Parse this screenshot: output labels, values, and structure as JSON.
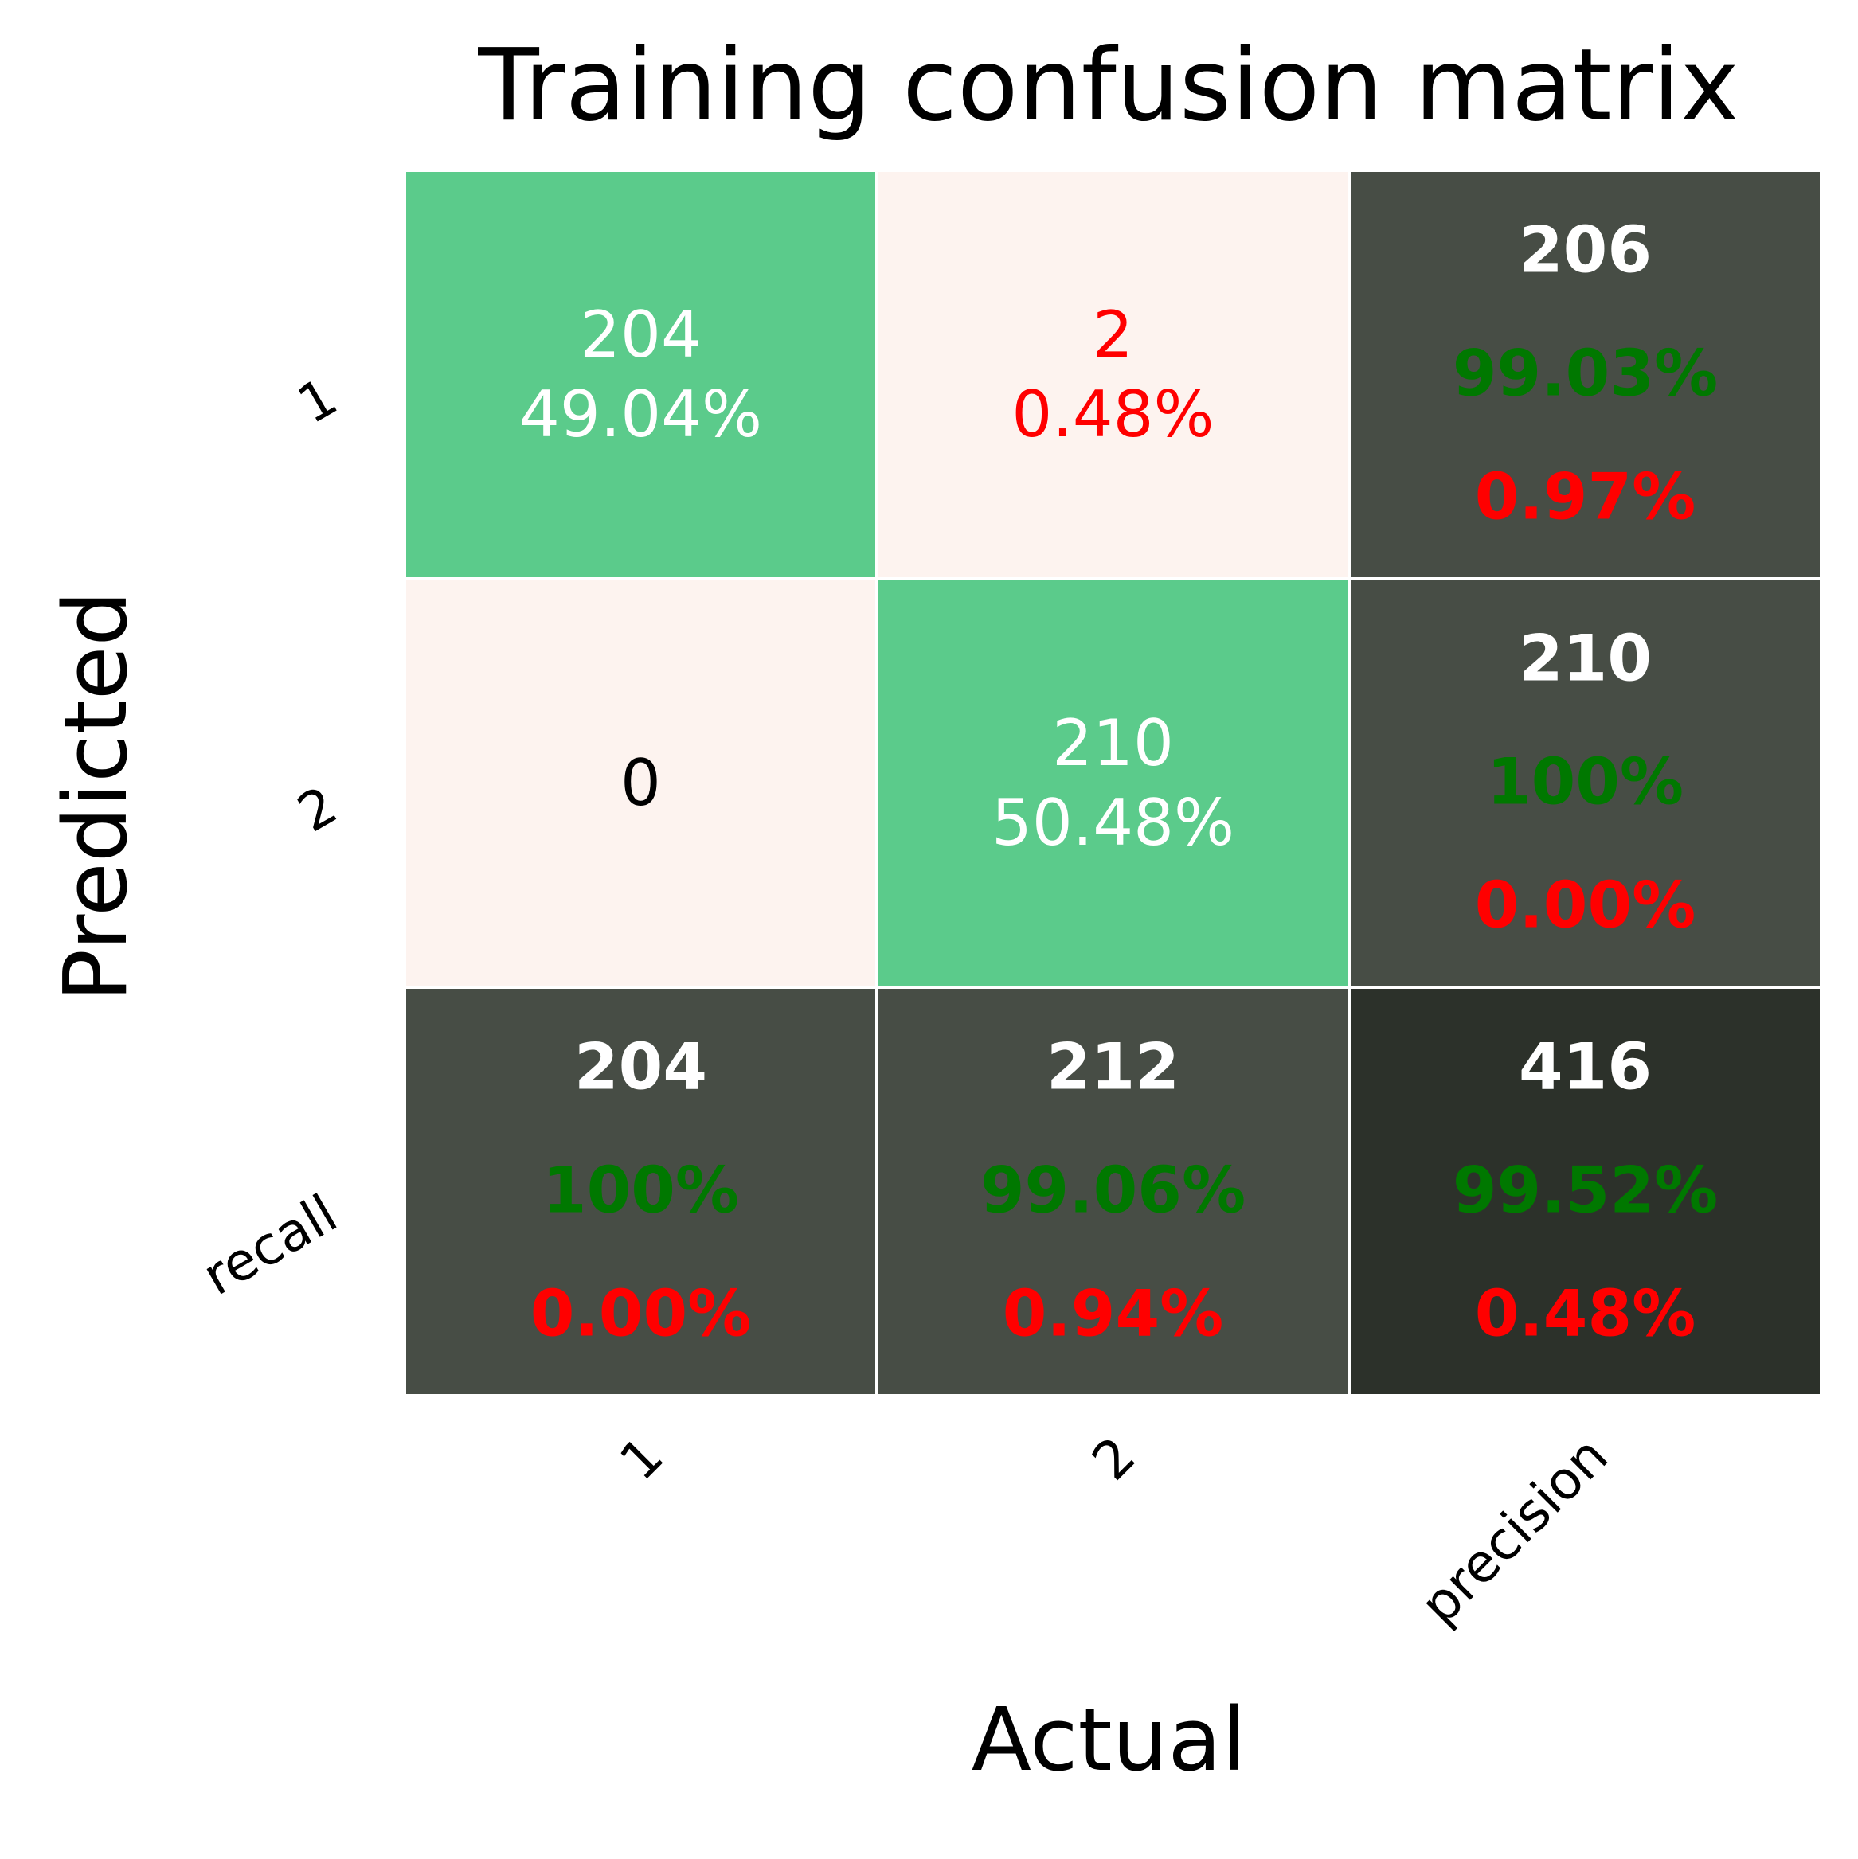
{
  "chart_data": {
    "type": "heatmap",
    "title": "Training confusion matrix",
    "xlabel": "Actual",
    "ylabel": "Predicted",
    "x_tick_labels": [
      "1",
      "2",
      "precision"
    ],
    "y_tick_labels": [
      "1",
      "2",
      "recall"
    ],
    "grid": false,
    "legend": "none",
    "rows": [
      [
        {
          "kind": "main",
          "count": "204",
          "pct": "49.04%",
          "fill": "#5bcb8b",
          "count_color": "#ffffff",
          "pct_color": "#ffffff"
        },
        {
          "kind": "main",
          "count": "2",
          "pct": "0.48%",
          "fill": "#fdf3ef",
          "count_color": "#ff0000",
          "pct_color": "#ff0000"
        },
        {
          "kind": "summary",
          "count": "206",
          "good": "99.03%",
          "bad": "0.97%",
          "fill": "#474d45"
        }
      ],
      [
        {
          "kind": "main",
          "count": "0",
          "pct": "",
          "fill": "#fdf3ef",
          "count_color": "#000000",
          "pct_color": "#000000"
        },
        {
          "kind": "main",
          "count": "210",
          "pct": "50.48%",
          "fill": "#5bcb8b",
          "count_color": "#ffffff",
          "pct_color": "#ffffff"
        },
        {
          "kind": "summary",
          "count": "210",
          "good": "100%",
          "bad": "0.00%",
          "fill": "#474d45"
        }
      ],
      [
        {
          "kind": "summary",
          "count": "204",
          "good": "100%",
          "bad": "0.00%",
          "fill": "#474d45"
        },
        {
          "kind": "summary",
          "count": "212",
          "good": "99.06%",
          "bad": "0.94%",
          "fill": "#474d45"
        },
        {
          "kind": "summary",
          "count": "416",
          "good": "99.52%",
          "bad": "0.48%",
          "fill": "#2c312a"
        }
      ]
    ],
    "colors": {
      "summary_count": "#ffffff",
      "summary_good": "#007800",
      "summary_bad": "#ff0000",
      "cell_border": "#ffffff"
    }
  }
}
